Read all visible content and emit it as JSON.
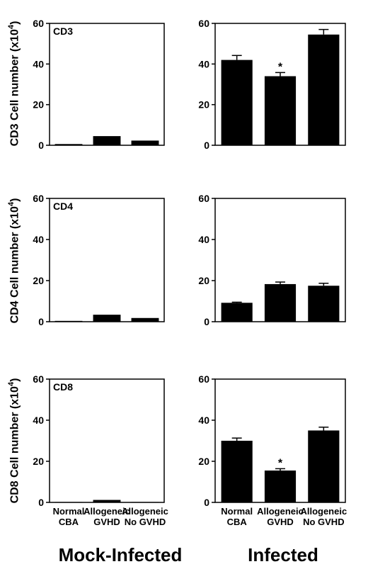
{
  "chart_data": [
    {
      "type": "bar",
      "title": "",
      "panel_label": "CD3",
      "column": "Mock-Infected",
      "categories": [
        "Normal CBA",
        "Allogeneic GVHD",
        "Allogeneic No GVHD"
      ],
      "values": [
        0.6,
        4.5,
        2.3
      ],
      "errors": [
        0,
        0,
        0
      ],
      "significance": [
        "",
        "",
        ""
      ],
      "ylim": [
        0,
        60
      ],
      "yticks": [
        0,
        20,
        40,
        60
      ],
      "ylabel": "CD3 Cell number (x10^4)"
    },
    {
      "type": "bar",
      "title": "",
      "panel_label": "",
      "column": "Infected",
      "categories": [
        "Normal CBA",
        "Allogeneic GVHD",
        "Allogeneic No GVHD"
      ],
      "values": [
        42,
        34,
        54.5
      ],
      "errors": [
        2.2,
        1.8,
        2.5
      ],
      "significance": [
        "",
        "*",
        ""
      ],
      "ylim": [
        0,
        60
      ],
      "yticks": [
        0,
        20,
        40,
        60
      ]
    },
    {
      "type": "bar",
      "title": "",
      "panel_label": "CD4",
      "column": "Mock-Infected",
      "categories": [
        "Normal CBA",
        "Allogeneic GVHD",
        "Allogeneic No GVHD"
      ],
      "values": [
        0.4,
        3.4,
        1.8
      ],
      "errors": [
        0,
        0,
        0
      ],
      "significance": [
        "",
        "",
        ""
      ],
      "ylim": [
        0,
        60
      ],
      "yticks": [
        0,
        20,
        40,
        60
      ],
      "ylabel": "CD4 Cell number (x10^4)"
    },
    {
      "type": "bar",
      "title": "",
      "panel_label": "",
      "column": "Infected",
      "categories": [
        "Normal CBA",
        "Allogeneic GVHD",
        "Allogeneic No GVHD"
      ],
      "values": [
        9.2,
        18.3,
        17.5
      ],
      "errors": [
        0.3,
        1.0,
        1.2
      ],
      "significance": [
        "",
        "",
        ""
      ],
      "ylim": [
        0,
        60
      ],
      "yticks": [
        0,
        20,
        40,
        60
      ]
    },
    {
      "type": "bar",
      "title": "",
      "panel_label": "CD8",
      "column": "Mock-Infected",
      "categories": [
        "Normal CBA",
        "Allogeneic GVHD",
        "Allogeneic No GVHD"
      ],
      "values": [
        0.2,
        1.2,
        0.2
      ],
      "errors": [
        0,
        0,
        0
      ],
      "significance": [
        "",
        "",
        ""
      ],
      "ylim": [
        0,
        60
      ],
      "yticks": [
        0,
        20,
        40,
        60
      ],
      "ylabel": "CD8 Cell number (x10^4)"
    },
    {
      "type": "bar",
      "title": "",
      "panel_label": "",
      "column": "Infected",
      "categories": [
        "Normal CBA",
        "Allogeneic GVHD",
        "Allogeneic No GVHD"
      ],
      "values": [
        30,
        15.5,
        35
      ],
      "errors": [
        1.3,
        0.9,
        1.6
      ],
      "significance": [
        "",
        "*",
        ""
      ],
      "ylim": [
        0,
        60
      ],
      "yticks": [
        0,
        20,
        40,
        60
      ]
    }
  ],
  "category_labels": [
    [
      "Normal",
      "CBA"
    ],
    [
      "Allogeneic",
      "GVHD"
    ],
    [
      "Allogeneic",
      "No GVHD"
    ]
  ],
  "ylabels": [
    {
      "prefix": "CD3 Cell number (x10",
      "exp": "4",
      "suffix": ")"
    },
    {
      "prefix": "CD4 Cell number (x10",
      "exp": "4",
      "suffix": ")"
    },
    {
      "prefix": "CD8 Cell number (x10",
      "exp": "4",
      "suffix": ")"
    }
  ],
  "column_labels": [
    "Mock-Infected",
    "Infected"
  ],
  "colors": {
    "bar": "#000000",
    "axis": "#000000",
    "background": "#ffffff"
  }
}
